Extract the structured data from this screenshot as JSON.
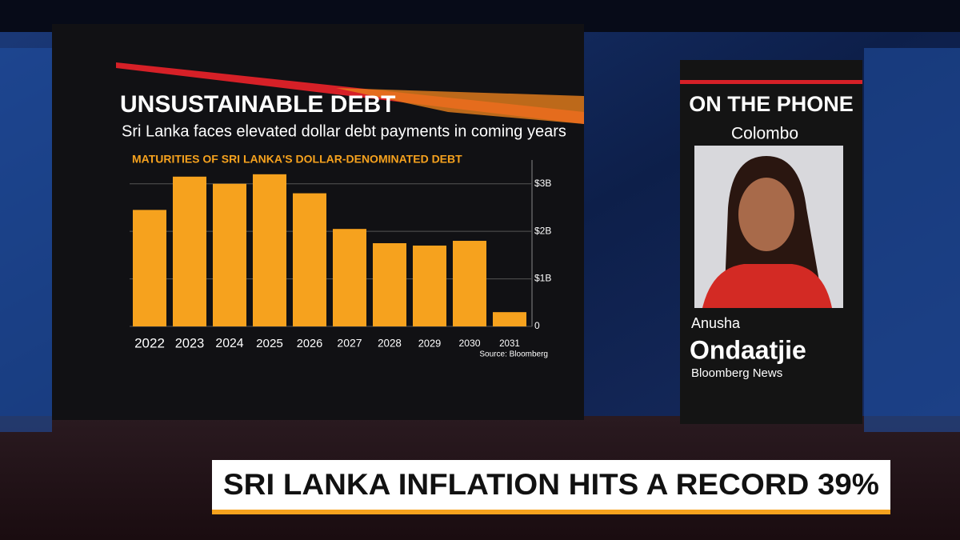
{
  "chart_data": {
    "type": "bar",
    "title": "UNSUSTAINABLE DEBT",
    "subtitle": "Sri Lanka faces elevated dollar debt payments in coming years",
    "axis_label": "MATURITIES OF SRI LANKA'S DOLLAR-DENOMINATED DEBT",
    "source": "Source: Bloomberg",
    "categories": [
      "2022",
      "2023",
      "2024",
      "2025",
      "2026",
      "2027",
      "2028",
      "2029",
      "2030",
      "2031"
    ],
    "values": [
      2.45,
      3.15,
      3.0,
      3.2,
      2.8,
      2.05,
      1.75,
      1.7,
      1.8,
      0.3
    ],
    "color": "#f6a21e",
    "ylim": [
      0,
      3.5
    ],
    "yticks": [
      0,
      {
        "value": 1,
        "label": "$1B"
      },
      {
        "value": 2,
        "label": "$2B"
      },
      {
        "value": 3,
        "label": "$3B"
      }
    ],
    "grid": true
  },
  "side_panel": {
    "heading": "ON THE PHONE",
    "location": "Colombo",
    "first_name": "Anusha",
    "last_name": "Ondaatjie",
    "affiliation": "Bloomberg News"
  },
  "lower_third": {
    "headline": "SRI LANKA INFLATION HITS A RECORD 39%"
  }
}
